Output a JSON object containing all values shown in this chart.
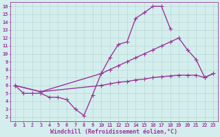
{
  "background_color": "#d4eeed",
  "grid_color": "#b8d8d5",
  "line_color": "#993399",
  "marker": "+",
  "markersize": 4,
  "linewidth": 1.0,
  "xlabel": "Windchill (Refroidissement éolien,°C)",
  "xlabel_fontsize": 6.0,
  "xlim": [
    -0.5,
    23.5
  ],
  "ylim": [
    1.5,
    16.5
  ],
  "xticks": [
    0,
    1,
    2,
    3,
    4,
    5,
    6,
    7,
    8,
    9,
    10,
    11,
    12,
    13,
    14,
    15,
    16,
    17,
    18,
    19,
    20,
    21,
    22,
    23
  ],
  "yticks": [
    2,
    3,
    4,
    5,
    6,
    7,
    8,
    9,
    10,
    11,
    12,
    13,
    14,
    15,
    16
  ],
  "tick_fontsize": 5.0,
  "series1_x": [
    0,
    1,
    2,
    3,
    4,
    5,
    6,
    7,
    8,
    9,
    10,
    11,
    12,
    13,
    14,
    15,
    16,
    17,
    18
  ],
  "series1_y": [
    6,
    5,
    5,
    5,
    4.5,
    4.5,
    4.2,
    3.0,
    2.2,
    4.8,
    7.5,
    9.5,
    11.2,
    11.5,
    14.5,
    15.2,
    16.0,
    16.0,
    13.2
  ],
  "series2_x": [
    0,
    3,
    10,
    11,
    12,
    13,
    14,
    15,
    16,
    17,
    18,
    19,
    20,
    21,
    22,
    23
  ],
  "series2_y": [
    6,
    5.2,
    7.5,
    8.0,
    8.5,
    9.0,
    9.5,
    10.0,
    10.5,
    11.0,
    11.5,
    12.0,
    10.5,
    9.3,
    7.0,
    7.5
  ],
  "series3_x": [
    0,
    3,
    10,
    11,
    12,
    13,
    14,
    15,
    16,
    17,
    18,
    19,
    20,
    21,
    22,
    23
  ],
  "series3_y": [
    6,
    5.2,
    6.0,
    6.2,
    6.4,
    6.5,
    6.7,
    6.8,
    7.0,
    7.1,
    7.2,
    7.3,
    7.3,
    7.3,
    7.0,
    7.5
  ]
}
